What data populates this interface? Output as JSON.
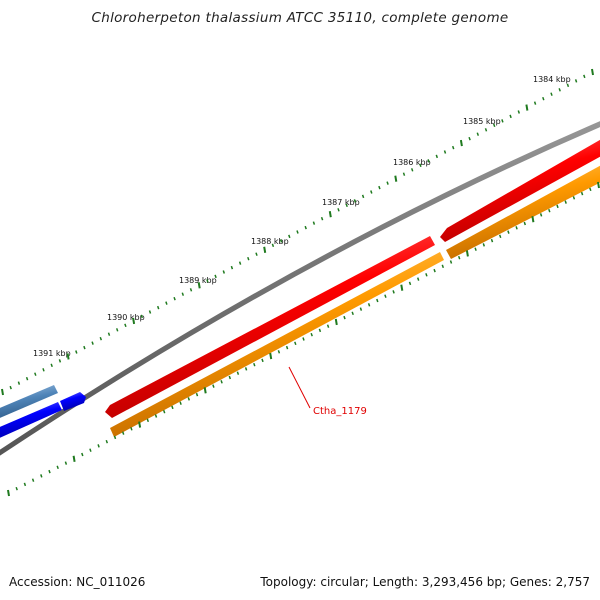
{
  "title": "Chloroherpeton thalassium ATCC 35110, complete genome",
  "ruler_labels": [
    "1384 kbp",
    "1385 kbp",
    "1386 kbp",
    "1387 kbp",
    "1388 kbp",
    "1389 kbp",
    "1390 kbp",
    "1391 kbp"
  ],
  "gene_label": "Ctha_1179",
  "footer": {
    "accession": "Accession: NC_011026",
    "summary": "Topology: circular; Length: 3,293,456 bp; Genes: 2,757"
  },
  "colors": {
    "ruler_ticks": "#1f7a1f",
    "backbone": "#7a7a7a",
    "cds_forward": "#ee0000",
    "cds_reverse": "#ff9900",
    "gene_steelblue": "#4f84b8",
    "gene_blue": "#1010ee",
    "gene_label": "#e00000"
  }
}
